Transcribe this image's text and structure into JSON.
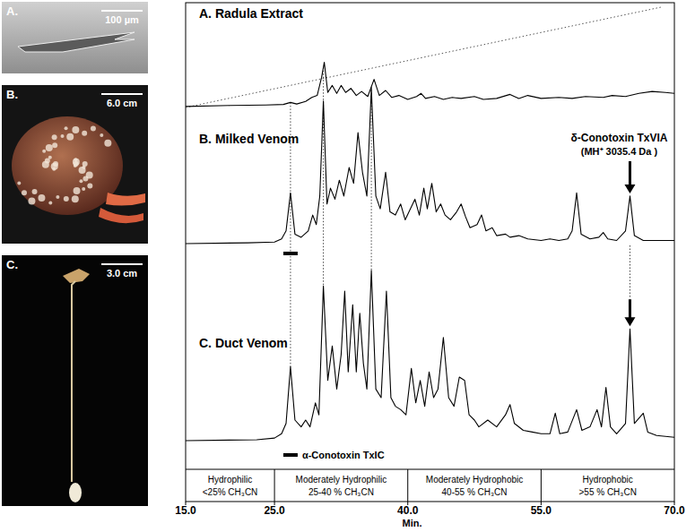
{
  "chart_data": {
    "type": "line",
    "x_label": "Min.",
    "xlim": [
      15,
      70
    ],
    "xticks": [
      {
        "value": 15,
        "label": "15.0"
      },
      {
        "value": 25,
        "label": "25.0"
      },
      {
        "value": 40,
        "label": "40.0"
      },
      {
        "value": 55,
        "label": "55.0"
      },
      {
        "value": 70,
        "label": "70.0"
      }
    ],
    "ylim": [
      0,
      100
    ],
    "tick_labels": "x",
    "grid": false,
    "series": [
      {
        "name": "A. Radula Extract",
        "color": "#000000",
        "x": [
          15,
          20,
          24,
          26,
          26.8,
          27.5,
          28.5,
          29.2,
          29.8,
          30.3,
          30.6,
          31,
          31.5,
          32,
          32.5,
          33,
          33.6,
          34.2,
          34.8,
          35.5,
          36.2,
          36.8,
          37.5,
          38.2,
          39,
          40,
          41,
          41.5,
          42,
          43,
          44,
          45,
          46,
          47.5,
          48.5,
          50,
          51.5,
          52.5,
          53.5,
          55,
          57,
          58.5,
          60,
          62,
          63,
          64.5,
          66,
          67.5,
          69,
          70
        ],
        "values": [
          1,
          2,
          2.5,
          3,
          5,
          3.5,
          6,
          10,
          12,
          30,
          45,
          15,
          22,
          14,
          22,
          15,
          19,
          12,
          16,
          11,
          28,
          12,
          17,
          10,
          12,
          8,
          11,
          14,
          9,
          11,
          8,
          10,
          9,
          11,
          8,
          9,
          13,
          9,
          12,
          9,
          10,
          9,
          11,
          10,
          12,
          11,
          14,
          16,
          15,
          14
        ]
      },
      {
        "name": "B. Milked Venom",
        "color": "#000000",
        "x": [
          15,
          22,
          25,
          25.8,
          26.3,
          26.8,
          27.3,
          28,
          28.8,
          29.3,
          29.7,
          30.1,
          30.5,
          30.9,
          31.3,
          31.8,
          32.3,
          32.8,
          33.4,
          33.9,
          34.4,
          34.9,
          35.4,
          35.9,
          36.4,
          36.9,
          37.5,
          38,
          38.6,
          39.2,
          39.7,
          40.3,
          40.8,
          41.3,
          41.8,
          42.2,
          42.7,
          43.2,
          43.7,
          44.2,
          44.8,
          45.5,
          46,
          46.5,
          47,
          47.8,
          48.3,
          48.8,
          49.5,
          50,
          51,
          51.5,
          52.5,
          53.5,
          55,
          56,
          57,
          58,
          58.5,
          59,
          59.5,
          60.5,
          61.5,
          62,
          62.5,
          63.5,
          64.5,
          65,
          65.5,
          66.5,
          68,
          70
        ],
        "values": [
          0,
          0.5,
          1,
          3,
          8,
          32,
          6,
          4,
          8,
          18,
          12,
          30,
          90,
          25,
          35,
          28,
          40,
          30,
          48,
          38,
          70,
          45,
          30,
          98,
          30,
          22,
          45,
          20,
          18,
          25,
          15,
          22,
          28,
          18,
          35,
          22,
          38,
          20,
          25,
          18,
          15,
          20,
          25,
          17,
          10,
          12,
          18,
          8,
          10,
          5,
          6,
          4,
          5,
          3,
          2,
          3,
          2,
          3,
          8,
          32,
          6,
          3,
          4,
          7,
          3,
          2,
          8,
          30,
          5,
          2,
          2,
          2
        ]
      },
      {
        "name": "C. Duct Venom",
        "color": "#000000",
        "x": [
          15,
          23,
          25,
          25.8,
          26.3,
          26.8,
          27.3,
          28,
          28.5,
          29,
          29.6,
          30,
          30.5,
          31,
          31.5,
          32,
          32.5,
          32.9,
          33.3,
          33.8,
          34.2,
          34.6,
          35,
          35.4,
          35.9,
          36.4,
          37,
          37.6,
          38.1,
          38.6,
          39.2,
          39.8,
          40.4,
          40.9,
          41.4,
          41.9,
          42.4,
          42.9,
          43.4,
          44,
          44.6,
          45.2,
          45.8,
          46.4,
          46.9,
          47.5,
          48,
          49,
          50,
          51,
          51.5,
          52,
          53,
          54,
          55,
          56,
          56.6,
          57.1,
          58,
          59,
          59.6,
          60.5,
          61.3,
          61.8,
          62.3,
          62.8,
          63.5,
          64.5,
          65,
          65.5,
          66.5,
          67,
          68,
          70
        ],
        "values": [
          0,
          0.5,
          1.5,
          4,
          10,
          43,
          12,
          8,
          12,
          8,
          22,
          15,
          90,
          35,
          55,
          30,
          50,
          87,
          40,
          79,
          40,
          74,
          45,
          30,
          99,
          30,
          25,
          87,
          25,
          20,
          18,
          15,
          42,
          22,
          35,
          20,
          40,
          25,
          30,
          60,
          25,
          20,
          37,
          35,
          15,
          12,
          8,
          12,
          8,
          15,
          21,
          10,
          6,
          5,
          4,
          4,
          16,
          4,
          5,
          18,
          6,
          8,
          18,
          8,
          31,
          8,
          4,
          10,
          65,
          10,
          16,
          5,
          3,
          2
        ]
      }
    ],
    "gradient": {
      "x": [
        15,
        68.5
      ],
      "values": [
        0,
        100
      ],
      "line_style": "dotted"
    },
    "guide_lines": [
      26.8,
      30.5,
      35.9
    ],
    "annotations": [
      {
        "text": "δ-Conotoxin TxVIA",
        "detail": "(MH⁺ 3035.4 Da )",
        "x": 65
      },
      {
        "text": "α-Conotoxin TxIC",
        "x": 26.8
      }
    ],
    "regions": [
      {
        "label": "Hydrophilic",
        "sublabel": "<25% CH₃CN",
        "from": 15,
        "to": 25
      },
      {
        "label": "Moderately Hydrophilic",
        "sublabel": "25-40 % CH₃CN",
        "from": 25,
        "to": 40
      },
      {
        "label": "Moderately Hydrophobic",
        "sublabel": "40-55 % CH₃CN",
        "from": 40,
        "to": 55
      },
      {
        "label": "Hydrophobic",
        "sublabel": ">55 % CH₃CN",
        "from": 55,
        "to": 70
      }
    ]
  },
  "photos": [
    {
      "label": "A.",
      "scale": "100 µm"
    },
    {
      "label": "B.",
      "scale": "6.0 cm"
    },
    {
      "label": "C.",
      "scale": "3.0 cm"
    }
  ]
}
